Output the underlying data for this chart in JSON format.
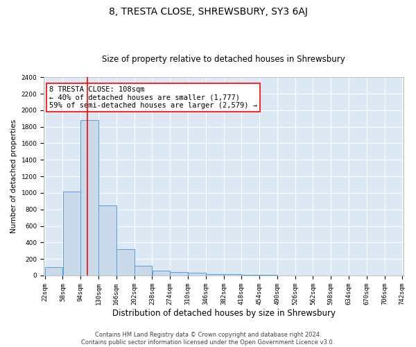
{
  "title": "8, TRESTA CLOSE, SHREWSBURY, SY3 6AJ",
  "subtitle": "Size of property relative to detached houses in Shrewsbury",
  "xlabel": "Distribution of detached houses by size in Shrewsbury",
  "ylabel": "Number of detached properties",
  "bar_color": "#c9daea",
  "bar_edge_color": "#5b9bd5",
  "background_color": "#dce9f5",
  "grid_color": "#ffffff",
  "vline_x": 108,
  "vline_color": "red",
  "bin_edges": [
    22,
    58,
    94,
    130,
    166,
    202,
    238,
    274,
    310,
    346,
    382,
    418,
    454,
    490,
    526,
    562,
    598,
    634,
    670,
    706,
    742
  ],
  "bar_heights": [
    100,
    1020,
    1880,
    850,
    315,
    120,
    55,
    45,
    30,
    15,
    15,
    10,
    5,
    3,
    2,
    1,
    1,
    1,
    0,
    0
  ],
  "ylim": [
    0,
    2400
  ],
  "yticks": [
    0,
    200,
    400,
    600,
    800,
    1000,
    1200,
    1400,
    1600,
    1800,
    2000,
    2200,
    2400
  ],
  "annotation_line1": "8 TRESTA CLOSE: 108sqm",
  "annotation_line2": "← 40% of detached houses are smaller (1,777)",
  "annotation_line3": "59% of semi-detached houses are larger (2,579) →",
  "annotation_box_color": "white",
  "annotation_box_edge": "red",
  "footer_line1": "Contains HM Land Registry data © Crown copyright and database right 2024.",
  "footer_line2": "Contains public sector information licensed under the Open Government Licence v3.0.",
  "title_fontsize": 10,
  "subtitle_fontsize": 8.5,
  "ylabel_fontsize": 7.5,
  "xlabel_fontsize": 8.5,
  "tick_fontsize": 6.5,
  "annotation_fontsize": 7.5,
  "footer_fontsize": 6
}
